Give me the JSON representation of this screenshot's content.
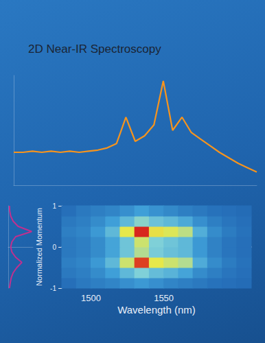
{
  "chart_data": [
    {
      "type": "line",
      "title": "2D Near-IR Spectroscopy",
      "color": "#f7941d",
      "tick_labels": false,
      "x": [
        1480,
        1485,
        1490,
        1495,
        1500,
        1505,
        1510,
        1515,
        1520,
        1525,
        1530,
        1535,
        1540,
        1545,
        1550,
        1555,
        1560,
        1565,
        1570,
        1575,
        1580,
        1585,
        1590,
        1595,
        1600,
        1605,
        1610
      ],
      "values": [
        0.3,
        0.3,
        0.31,
        0.3,
        0.31,
        0.3,
        0.31,
        0.3,
        0.31,
        0.32,
        0.34,
        0.38,
        0.62,
        0.4,
        0.45,
        0.55,
        0.95,
        0.5,
        0.62,
        0.48,
        0.42,
        0.36,
        0.3,
        0.25,
        0.2,
        0.16,
        0.12
      ],
      "xlim": [
        1480,
        1610
      ],
      "ylim": [
        0,
        1
      ]
    },
    {
      "type": "heatmap",
      "xlabel": "Wavelength (nm)",
      "ylabel": "Normalized Momentum",
      "x": [
        1485,
        1495,
        1505,
        1515,
        1525,
        1535,
        1545,
        1555,
        1565,
        1575,
        1585,
        1595,
        1605
      ],
      "y": [
        -0.875,
        -0.625,
        -0.375,
        -0.125,
        0.125,
        0.375,
        0.625,
        0.875
      ],
      "cells": [
        [
          0.05,
          0.08,
          0.1,
          0.12,
          0.15,
          0.18,
          0.15,
          0.12,
          0.1,
          0.08,
          0.06,
          0.05,
          0.04
        ],
        [
          0.08,
          0.1,
          0.14,
          0.2,
          0.3,
          0.4,
          0.32,
          0.28,
          0.22,
          0.14,
          0.1,
          0.07,
          0.05
        ],
        [
          0.1,
          0.12,
          0.18,
          0.3,
          0.55,
          0.95,
          0.6,
          0.55,
          0.5,
          0.25,
          0.14,
          0.09,
          0.06
        ],
        [
          0.08,
          0.1,
          0.14,
          0.22,
          0.35,
          0.5,
          0.38,
          0.33,
          0.3,
          0.18,
          0.11,
          0.07,
          0.05
        ],
        [
          0.08,
          0.1,
          0.14,
          0.22,
          0.35,
          0.55,
          0.4,
          0.35,
          0.3,
          0.18,
          0.11,
          0.07,
          0.05
        ],
        [
          0.1,
          0.12,
          0.18,
          0.3,
          0.6,
          1.0,
          0.62,
          0.58,
          0.52,
          0.26,
          0.14,
          0.09,
          0.06
        ],
        [
          0.08,
          0.1,
          0.14,
          0.2,
          0.3,
          0.42,
          0.34,
          0.3,
          0.24,
          0.15,
          0.1,
          0.07,
          0.05
        ],
        [
          0.05,
          0.08,
          0.1,
          0.12,
          0.15,
          0.2,
          0.16,
          0.13,
          0.1,
          0.08,
          0.06,
          0.05,
          0.04
        ]
      ],
      "zlim": [
        0,
        1
      ],
      "xlim": [
        1480,
        1610
      ],
      "xticks": [
        1500,
        1550
      ],
      "ylim": [
        -1,
        1
      ],
      "yticks": [
        -1,
        0,
        1
      ],
      "grid": false
    },
    {
      "type": "line",
      "orientation": "horizontal",
      "color": "#c0308f",
      "tick_labels": false,
      "x": [
        -1,
        -0.875,
        -0.75,
        -0.625,
        -0.5,
        -0.375,
        -0.25,
        -0.125,
        0,
        0.125,
        0.25,
        0.375,
        0.5,
        0.625,
        0.75,
        0.875,
        1
      ],
      "values": [
        0.05,
        0.08,
        0.12,
        0.2,
        0.35,
        0.55,
        0.3,
        0.15,
        0.1,
        0.15,
        0.3,
        0.95,
        0.4,
        0.2,
        0.1,
        0.06,
        0.05
      ],
      "xlim": [
        -1,
        1
      ],
      "ylim": [
        0,
        1
      ]
    }
  ]
}
